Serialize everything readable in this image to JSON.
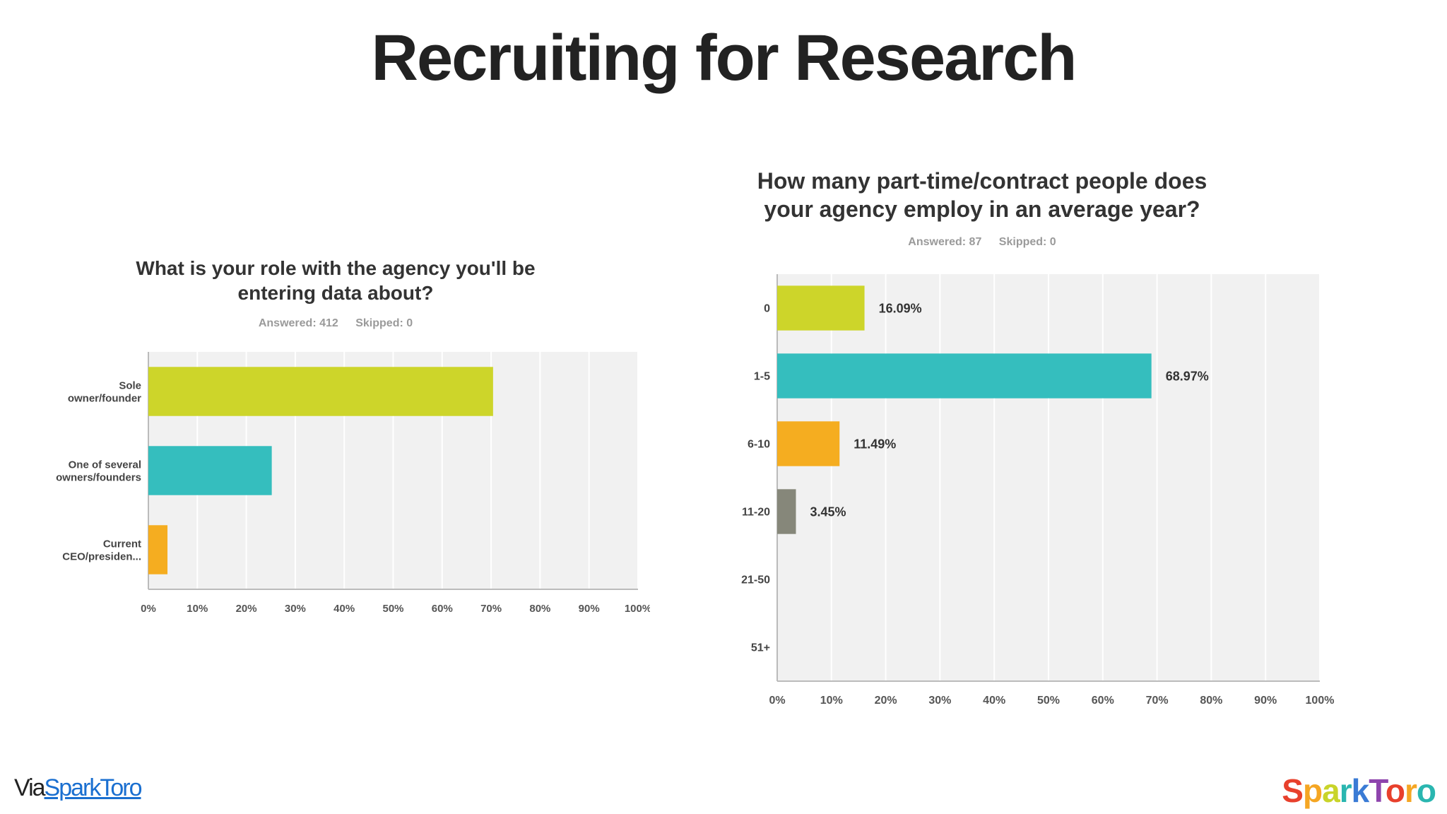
{
  "slide": {
    "title": "Recruiting for Research",
    "via_label": "Via",
    "via_link": "SparkToro",
    "logo_text": "SparkToro",
    "logo_colors": [
      "#e8402c",
      "#f5a623",
      "#c9d42a",
      "#2ab6b0",
      "#3a7bd5",
      "#8e44ad",
      "#e8402c",
      "#f5a623",
      "#2ab6b0"
    ]
  },
  "chart_data": [
    {
      "type": "bar",
      "orientation": "horizontal",
      "title_line1": "What is your role with the agency you'll be",
      "title_line2": "entering data about?",
      "answered": "Answered: 412",
      "skipped": "Skipped: 0",
      "categories": [
        [
          "Sole",
          "owner/founder"
        ],
        [
          "One of several",
          "owners/founders"
        ],
        [
          "Current",
          "CEO/presiden..."
        ]
      ],
      "values": [
        70.4,
        25.2,
        3.9
      ],
      "data_labels": [
        "",
        "",
        ""
      ],
      "colors": [
        "#cdd52a",
        "#35bebe",
        "#f5ad20"
      ],
      "xlim": [
        0,
        100
      ],
      "x_ticks": [
        "0%",
        "10%",
        "20%",
        "30%",
        "40%",
        "50%",
        "60%",
        "70%",
        "80%",
        "90%",
        "100%"
      ],
      "grid": true
    },
    {
      "type": "bar",
      "orientation": "horizontal",
      "title_line1": "How many part-time/contract people does",
      "title_line2": "your agency employ in an average year?",
      "answered": "Answered: 87",
      "skipped": "Skipped: 0",
      "categories": [
        [
          "0"
        ],
        [
          "1-5"
        ],
        [
          "6-10"
        ],
        [
          "11-20"
        ],
        [
          "21-50"
        ],
        [
          "51+"
        ]
      ],
      "values": [
        16.09,
        68.97,
        11.49,
        3.45,
        0,
        0
      ],
      "data_labels": [
        "16.09%",
        "68.97%",
        "11.49%",
        "3.45%",
        "",
        ""
      ],
      "colors": [
        "#cdd52a",
        "#35bebe",
        "#f5ad20",
        "#86877a",
        "#cccccc",
        "#cccccc"
      ],
      "xlim": [
        0,
        100
      ],
      "x_ticks": [
        "0%",
        "10%",
        "20%",
        "30%",
        "40%",
        "50%",
        "60%",
        "70%",
        "80%",
        "90%",
        "100%"
      ],
      "grid": true
    }
  ]
}
